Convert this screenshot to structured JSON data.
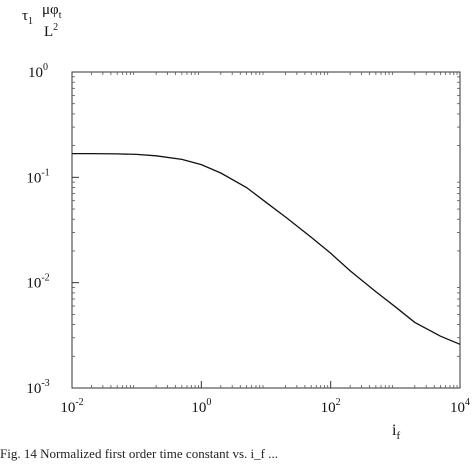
{
  "chart_data": {
    "type": "line",
    "title": "",
    "ylabel": {
      "tau": "τ",
      "tau_sub": "1",
      "num": "μφ",
      "num_sub": "t",
      "den": "L",
      "den_sup": "2"
    },
    "xlabel": {
      "main": "i",
      "sub": "f"
    },
    "xscale": "log",
    "yscale": "log",
    "xlim": [
      0.01,
      10000
    ],
    "ylim": [
      0.001,
      1
    ],
    "grid": false,
    "legend": "none",
    "x_ticks": [
      {
        "value": 0.01,
        "base": "10",
        "exp": "-2"
      },
      {
        "value": 1,
        "base": "10",
        "exp": "0"
      },
      {
        "value": 100,
        "base": "10",
        "exp": "2"
      },
      {
        "value": 10000,
        "base": "10",
        "exp": "4"
      }
    ],
    "y_ticks": [
      {
        "value": 1,
        "base": "10",
        "exp": "0"
      },
      {
        "value": 0.1,
        "base": "10",
        "exp": "-1"
      },
      {
        "value": 0.01,
        "base": "10",
        "exp": "-2"
      },
      {
        "value": 0.001,
        "base": "10",
        "exp": "-3"
      }
    ],
    "series": [
      {
        "x": [
          0.01,
          0.02,
          0.05,
          0.1,
          0.2,
          0.5,
          1,
          2,
          5,
          10,
          20,
          50,
          100,
          200,
          500,
          1000,
          2000,
          5000,
          10000
        ],
        "y": [
          0.168,
          0.168,
          0.167,
          0.165,
          0.16,
          0.148,
          0.132,
          0.11,
          0.08,
          0.058,
          0.042,
          0.027,
          0.019,
          0.013,
          0.0082,
          0.0059,
          0.0042,
          0.0031,
          0.0026
        ]
      }
    ]
  },
  "caption": "Fig. 14    Normalized first order time constant vs. i_f ... "
}
